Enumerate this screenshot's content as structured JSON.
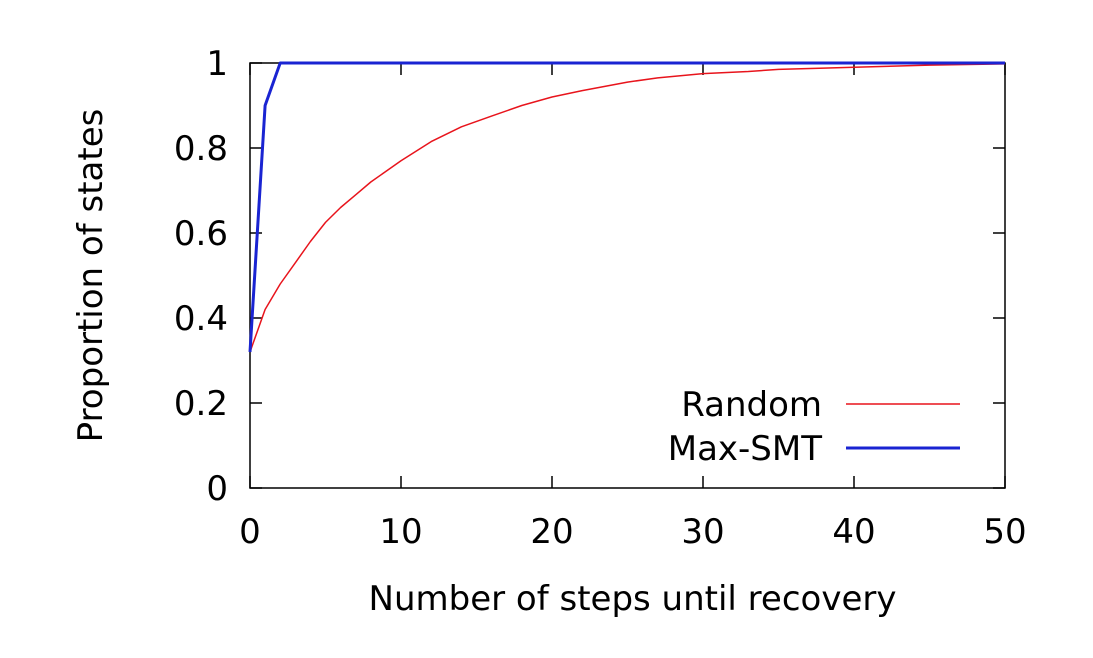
{
  "chart_data": {
    "type": "line",
    "title": "",
    "xlabel": "Number of steps until recovery",
    "ylabel": "Proportion of states",
    "xlim": [
      0,
      50
    ],
    "ylim": [
      0,
      1
    ],
    "xticks": [
      0,
      10,
      20,
      30,
      40,
      50
    ],
    "yticks": [
      0,
      0.2,
      0.4,
      0.6,
      0.8,
      1
    ],
    "xtick_labels": [
      "0",
      "10",
      "20",
      "30",
      "40",
      "50"
    ],
    "ytick_labels": [
      "0",
      "0.2",
      "0.4",
      "0.6",
      "0.8",
      "1"
    ],
    "grid": false,
    "legend_position": "bottom-right",
    "series": [
      {
        "name": "Random",
        "color": "#e8141c",
        "x": [
          0,
          1,
          2,
          3,
          4,
          5,
          6,
          7,
          8,
          9,
          10,
          12,
          14,
          16,
          18,
          20,
          22,
          25,
          27,
          30,
          33,
          35,
          38,
          40,
          45,
          50
        ],
        "y": [
          0.32,
          0.42,
          0.48,
          0.53,
          0.58,
          0.625,
          0.66,
          0.69,
          0.72,
          0.745,
          0.77,
          0.815,
          0.85,
          0.875,
          0.9,
          0.92,
          0.935,
          0.955,
          0.965,
          0.975,
          0.98,
          0.985,
          0.988,
          0.99,
          0.995,
          0.998
        ]
      },
      {
        "name": "Max-SMT",
        "color": "#1a24d2",
        "x": [
          0,
          1,
          2,
          50
        ],
        "y": [
          0.32,
          0.9,
          1.0,
          1.0
        ]
      }
    ]
  }
}
